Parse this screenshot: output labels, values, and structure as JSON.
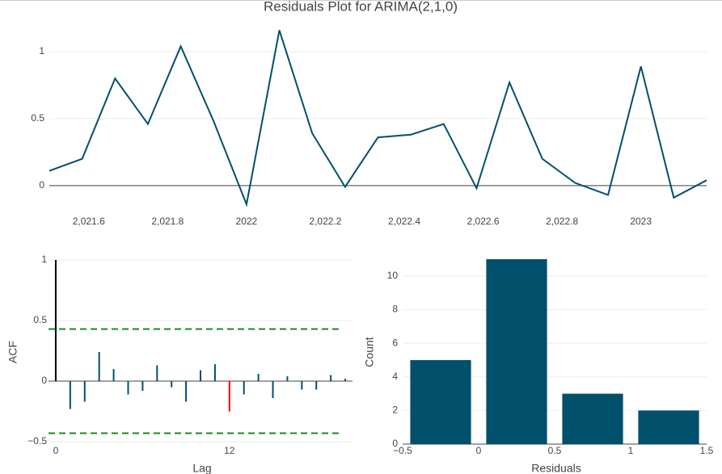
{
  "title": "Residuals Plot for ARIMA(2,1,0)",
  "chart_data": [
    {
      "type": "line",
      "x": [
        2021.5,
        2021.5833,
        2021.6667,
        2021.75,
        2021.8333,
        2021.9167,
        2022.0,
        2022.0833,
        2022.1667,
        2022.25,
        2022.3333,
        2022.4167,
        2022.5,
        2022.5833,
        2022.6667,
        2022.75,
        2022.8333,
        2022.9167,
        2023.0,
        2023.0833,
        2023.1667
      ],
      "values": [
        0.11,
        0.2,
        0.8,
        0.46,
        1.04,
        0.48,
        -0.14,
        1.16,
        0.39,
        -0.01,
        0.36,
        0.38,
        0.46,
        -0.02,
        0.77,
        0.2,
        0.02,
        -0.07,
        0.89,
        -0.09,
        0.04
      ],
      "color": "#00506b",
      "xlim": [
        2021.5,
        2023.1667
      ],
      "xticks": [
        {
          "value": 2021.6,
          "label": "2,021.6"
        },
        {
          "value": 2021.8,
          "label": "2,021.8"
        },
        2022,
        {
          "value": 2022.2,
          "label": "2,022.2"
        },
        {
          "value": 2022.4,
          "label": "2,022.4"
        },
        {
          "value": 2022.6,
          "label": "2,022.6"
        },
        {
          "value": 2022.8,
          "label": "2,022.8"
        },
        2023
      ],
      "ylim": [
        -0.2,
        1.25
      ],
      "yticks": [
        0,
        0.5,
        1
      ],
      "grid": true,
      "zeroline": true
    },
    {
      "type": "stem",
      "x_label": "Lag",
      "y_label": "ACF",
      "x": [
        0,
        1,
        2,
        3,
        4,
        5,
        6,
        7,
        8,
        9,
        10,
        11,
        12,
        13,
        14,
        15,
        16,
        17,
        18,
        19,
        20
      ],
      "values": [
        1,
        -0.23,
        -0.17,
        0.24,
        0.1,
        -0.11,
        -0.08,
        0.13,
        -0.05,
        -0.17,
        0.09,
        0.14,
        -0.25,
        -0.11,
        0.06,
        -0.14,
        0.04,
        -0.07,
        -0.07,
        0.05,
        0.02
      ],
      "colors": [
        "#000000",
        "#00506b",
        "#00506b",
        "#00506b",
        "#00506b",
        "#00506b",
        "#00506b",
        "#00506b",
        "#00506b",
        "#00506b",
        "#00506b",
        "#00506b",
        "#ff0000",
        "#00506b",
        "#00506b",
        "#00506b",
        "#00506b",
        "#00506b",
        "#00506b",
        "#00506b",
        "#00506b"
      ],
      "confidence_band": [
        -0.43,
        0.43
      ],
      "band_color": "#1a8a1a",
      "xlim": [
        -0.5,
        20.5
      ],
      "xticks": [
        0,
        12
      ],
      "ylim": [
        -0.55,
        1
      ],
      "yticks": [
        {
          "value": -0.5,
          "label": "−0.5"
        },
        0,
        0.5,
        1
      ],
      "grid": true,
      "zeroline": true
    },
    {
      "type": "histogram",
      "x_label": "Residuals",
      "y_label": "Count",
      "bins": [
        -0.5,
        0,
        0.5,
        1,
        1.5
      ],
      "values": [
        5,
        11,
        3,
        2
      ],
      "color": "#00506b",
      "xlim": [
        -0.5,
        1.5
      ],
      "xticks": [
        {
          "value": -0.5,
          "label": "−0.5"
        },
        0,
        0.5,
        1,
        1.5
      ],
      "ylim": [
        0,
        11
      ],
      "yticks": [
        0,
        2,
        4,
        6,
        8,
        10
      ],
      "grid": true,
      "zeroline": true
    }
  ]
}
